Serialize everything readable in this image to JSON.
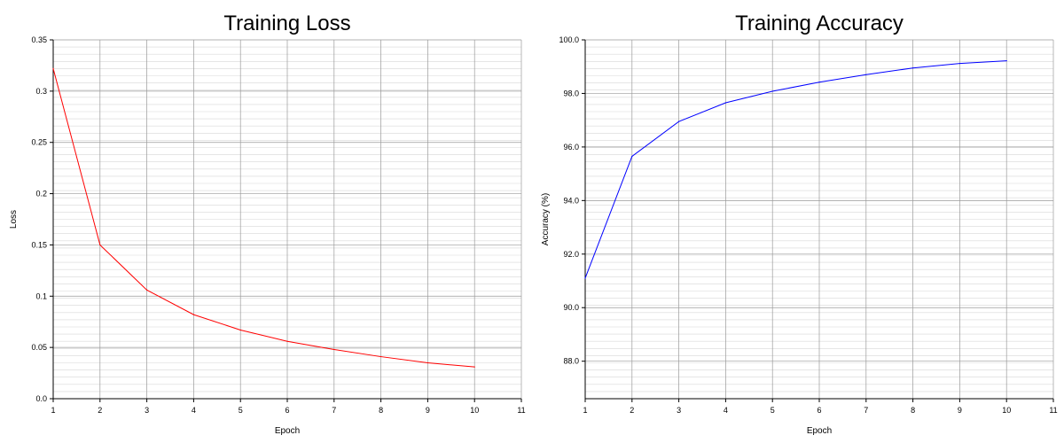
{
  "chart_data": [
    {
      "type": "line",
      "title": "Training Loss",
      "xlabel": "Epoch",
      "ylabel": "Loss",
      "xlim": [
        1,
        11
      ],
      "ylim": [
        0,
        0.35
      ],
      "x_ticks": [
        1,
        2,
        3,
        4,
        5,
        6,
        7,
        8,
        9,
        10,
        11
      ],
      "y_ticks": [
        0.0,
        0.05,
        0.1,
        0.15,
        0.2,
        0.25,
        0.3,
        0.35
      ],
      "y_tick_labels": [
        "0.0",
        "0.05",
        "0.1",
        "0.15",
        "0.2",
        "0.25",
        "0.3",
        "0.35"
      ],
      "grid": true,
      "series": [
        {
          "color": "#ff0000",
          "x": [
            1,
            2,
            3,
            4,
            5,
            6,
            7,
            8,
            9,
            10
          ],
          "y": [
            0.322,
            0.15,
            0.106,
            0.082,
            0.067,
            0.056,
            0.048,
            0.041,
            0.035,
            0.031
          ]
        }
      ]
    },
    {
      "type": "line",
      "title": "Training Accuracy",
      "xlabel": "Epoch",
      "ylabel": "Accuracy (%)",
      "xlim": [
        1,
        11
      ],
      "ylim": [
        86.6,
        100
      ],
      "x_ticks": [
        1,
        2,
        3,
        4,
        5,
        6,
        7,
        8,
        9,
        10,
        11
      ],
      "y_ticks": [
        88.0,
        90.0,
        92.0,
        94.0,
        96.0,
        98.0,
        100.0
      ],
      "y_tick_labels": [
        "88.0",
        "90.0",
        "92.0",
        "94.0",
        "96.0",
        "98.0",
        "100.0"
      ],
      "grid": true,
      "series": [
        {
          "color": "#0000ff",
          "x": [
            1,
            2,
            3,
            4,
            5,
            6,
            7,
            8,
            9,
            10
          ],
          "y": [
            91.1,
            95.65,
            96.95,
            97.65,
            98.08,
            98.42,
            98.7,
            98.95,
            99.12,
            99.22
          ]
        }
      ]
    }
  ]
}
